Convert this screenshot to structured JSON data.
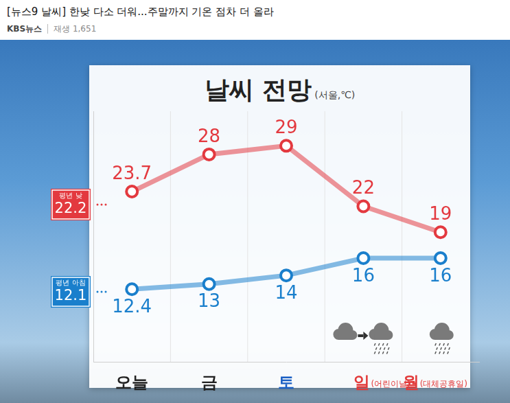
{
  "header": {
    "title": "[뉴스9 날씨] 한낮 다소 더워...주말까지 기온 점차 더 올라",
    "channel": "KBS뉴스",
    "views": "재생 1,651"
  },
  "chart_data": {
    "type": "line",
    "title": "날씨 전망",
    "subtitle": "(서울,℃)",
    "categories": [
      "오늘",
      "금",
      "토",
      "일(어린이날)",
      "월(대체공휴일)"
    ],
    "series": [
      {
        "color": "#e3393f",
        "values": [
          23.7,
          28,
          29,
          22,
          19
        ]
      },
      {
        "color": "#1a7fcc",
        "values": [
          12.4,
          13,
          14,
          16,
          16
        ]
      }
    ],
    "reference_lines": [
      {
        "label": "평년 낮",
        "value": 22.2,
        "color": "#e3393f"
      },
      {
        "label": "평년 아침",
        "value": 12.1,
        "color": "#1a7fcc"
      }
    ],
    "ylim": [
      4,
      33
    ],
    "yticks": [],
    "grid": false,
    "data_labels": true,
    "tick_labels": "x",
    "marker": "circle"
  }
}
